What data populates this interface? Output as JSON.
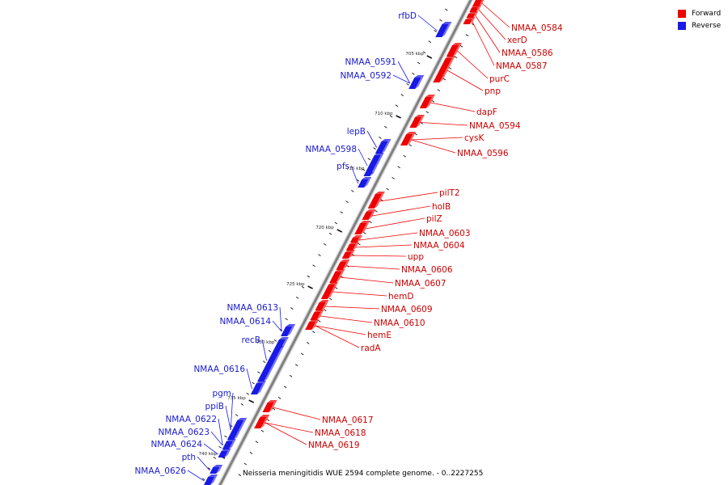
{
  "colors": {
    "forward": "#ee0000",
    "reverse": "#1a1ae6",
    "backbone": "#808080",
    "tick": "#111111"
  },
  "legend": {
    "items": [
      {
        "label": "Forward",
        "color": "#ee0000"
      },
      {
        "label": "Reverse",
        "color": "#1a1ae6"
      }
    ]
  },
  "caption": "Neisseria meningitidis WUE 2594 complete genome. - 0..2227255",
  "ticks": [
    "705 kbp",
    "710 kbp",
    "715 kbp",
    "720 kbp",
    "725 kbp",
    "730 kbp",
    "735 kbp",
    "740 kbp"
  ],
  "forward_labels": [
    "NMAA_0584",
    "xerD",
    "NMAA_0586",
    "NMAA_0587",
    "purC",
    "pnp",
    "dapF",
    "NMAA_0594",
    "cysK",
    "NMAA_0596",
    "pilT2",
    "holB",
    "pilZ",
    "NMAA_0603",
    "NMAA_0604",
    "upp",
    "NMAA_0606",
    "NMAA_0607",
    "hemD",
    "NMAA_0609",
    "NMAA_0610",
    "hemE",
    "radA",
    "NMAA_0617",
    "NMAA_0618",
    "NMAA_0619"
  ],
  "reverse_labels": [
    "rfbD",
    "NMAA_0591",
    "NMAA_0592",
    "lepB",
    "NMAA_0598",
    "pfs",
    "NMAA_0613",
    "NMAA_0614",
    "recB",
    "NMAA_0616",
    "pgm",
    "ppiB",
    "NMAA_0622",
    "NMAA_0623",
    "NMAA_0624",
    "pth",
    "NMAA_0626"
  ]
}
